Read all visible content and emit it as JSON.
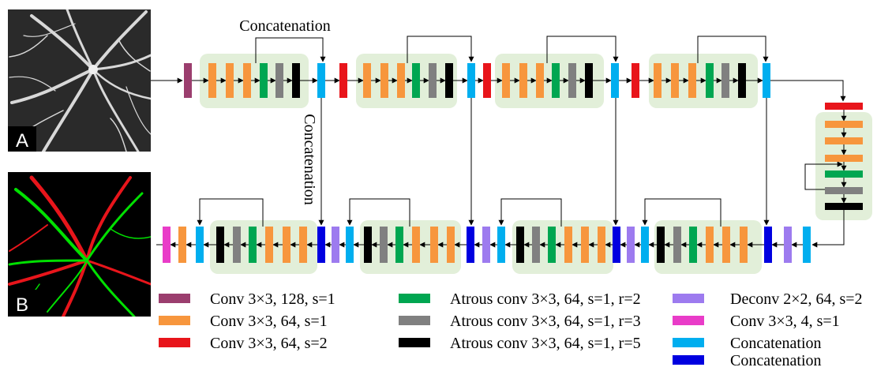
{
  "annotations": {
    "concat_top": "Concatenation",
    "concat_vertical": "Concatenation"
  },
  "panels": {
    "input_label": "A",
    "output_label": "B"
  },
  "colors": {
    "conv128": "#9B3E6E",
    "conv64": "#F7963D",
    "conv64s2": "#E8151B",
    "atrous2": "#00A651",
    "atrous3": "#808080",
    "atrous5": "#000000",
    "deconv": "#9D7BEF",
    "conv4": "#E93CC8",
    "concat_light": "#00AEEF",
    "concat_dark": "#0000E0",
    "group_bg": "#E2EFD9",
    "line": "#000000"
  },
  "legend": [
    {
      "key": "conv128",
      "label": "Conv 3×3, 128, s=1"
    },
    {
      "key": "conv64",
      "label": "Conv 3×3, 64, s=1"
    },
    {
      "key": "conv64s2",
      "label": "Conv 3×3, 64, s=2"
    },
    {
      "key": "atrous2",
      "label": "Atrous conv 3×3, 64, s=1, r=2"
    },
    {
      "key": "atrous3",
      "label": "Atrous conv 3×3, 64, s=1, r=3"
    },
    {
      "key": "atrous5",
      "label": "Atrous conv 3×3, 64, s=1, r=5"
    },
    {
      "key": "deconv",
      "label": "Deconv 2×2, 64, s=2"
    },
    {
      "key": "conv4",
      "label": "Conv 3×3, 4, s=1"
    },
    {
      "key": "concat_light",
      "label": "Concatenation"
    },
    {
      "key": "concat_dark",
      "label": "Concatenation"
    }
  ]
}
